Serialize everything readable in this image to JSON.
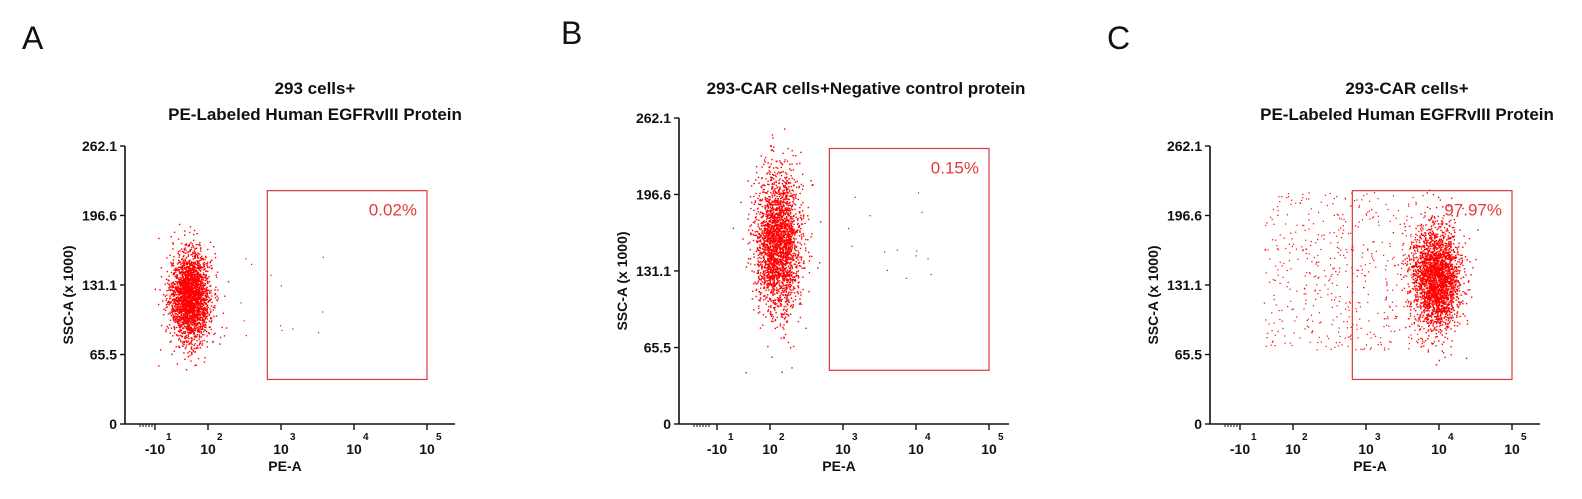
{
  "panels": [
    {
      "letter": "A",
      "title_lines": [
        "293 cells+",
        "PE-Labeled Human EGFRvIII Protein"
      ],
      "gate_percent": "0.02%"
    },
    {
      "letter": "B",
      "title_lines": [
        "293-CAR cells+Negative control protein"
      ],
      "gate_percent": "0.15%"
    },
    {
      "letter": "C",
      "title_lines": [
        "293-CAR cells+",
        "PE-Labeled Human EGFRvIII Protein"
      ],
      "gate_percent": "97.97%"
    }
  ],
  "chart_data": [
    {
      "type": "scatter",
      "title": "293 cells+ PE-Labeled Human EGFRvIII Protein",
      "xlabel": "PE-A",
      "ylabel": "SSC-A (x 1000)",
      "x_ticks": [
        {
          "base": "-10",
          "exp": "1"
        },
        {
          "base": "10",
          "exp": "2"
        },
        {
          "base": "10",
          "exp": "3"
        },
        {
          "base": "10",
          "exp": "4"
        },
        {
          "base": "10",
          "exp": "5"
        }
      ],
      "y_ticks": [
        "262.1",
        "196.6",
        "131.1",
        "65.5",
        "0"
      ],
      "ylim": [
        0,
        262.1
      ],
      "gate": {
        "x_range": [
          650,
          100000
        ],
        "y_range": [
          42,
          220
        ],
        "percent": "0.02%"
      },
      "population": {
        "x_center_log": 1.75,
        "x_spread_log": 0.25,
        "y_center": 120,
        "y_spread": 28
      },
      "colors": {
        "points": "#ff0000",
        "gate": "#d83a3a"
      }
    },
    {
      "type": "scatter",
      "title": "293-CAR cells+Negative control protein",
      "xlabel": "PE-A",
      "ylabel": "SSC-A (x 1000)",
      "x_ticks": [
        {
          "base": "-10",
          "exp": "1"
        },
        {
          "base": "10",
          "exp": "2"
        },
        {
          "base": "10",
          "exp": "3"
        },
        {
          "base": "10",
          "exp": "4"
        },
        {
          "base": "10",
          "exp": "5"
        }
      ],
      "y_ticks": [
        "262.1",
        "196.6",
        "131.1",
        "65.5",
        "0"
      ],
      "ylim": [
        0,
        262.1
      ],
      "gate": {
        "x_range": [
          650,
          100000
        ],
        "y_range": [
          46,
          236
        ],
        "percent": "0.15%"
      },
      "population": {
        "x_center_log": 2.1,
        "x_spread_log": 0.28,
        "y_center": 155,
        "y_spread": 40
      },
      "colors": {
        "points": "#ff0000",
        "gate": "#d83a3a"
      }
    },
    {
      "type": "scatter",
      "title": "293-CAR cells+ PE-Labeled Human EGFRvIII Protein",
      "xlabel": "PE-A",
      "ylabel": "SSC-A (x 1000)",
      "x_ticks": [
        {
          "base": "-10",
          "exp": "1"
        },
        {
          "base": "10",
          "exp": "2"
        },
        {
          "base": "10",
          "exp": "3"
        },
        {
          "base": "10",
          "exp": "4"
        },
        {
          "base": "10",
          "exp": "5"
        }
      ],
      "y_ticks": [
        "262.1",
        "196.6",
        "131.1",
        "65.5",
        "0"
      ],
      "ylim": [
        0,
        262.1
      ],
      "gate": {
        "x_range": [
          650,
          100000
        ],
        "y_range": [
          42,
          220
        ],
        "percent": "97.97%"
      },
      "population": {
        "x_center_log": 3.95,
        "x_spread_log": 0.3,
        "y_center": 138,
        "y_spread": 32
      },
      "colors": {
        "points": "#ff0000",
        "gate": "#d83a3a"
      }
    }
  ]
}
